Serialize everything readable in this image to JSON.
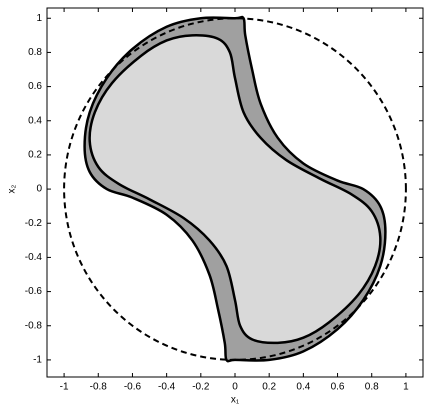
{
  "chart_data": {
    "type": "closed-curve",
    "xlabel": "x₁",
    "ylabel": "x₂",
    "xlim": [
      -1.1,
      1.1
    ],
    "ylim": [
      -1.1,
      1.06
    ],
    "xticks": [
      -1,
      -0.8,
      -0.6,
      -0.4,
      -0.2,
      0,
      0.2,
      0.4,
      0.6,
      0.8,
      1
    ],
    "yticks": [
      -1,
      -0.8,
      -0.6,
      -0.4,
      -0.2,
      0,
      0.2,
      0.4,
      0.6,
      0.8,
      1
    ],
    "series": [
      {
        "color": "#000000",
        "fill": "#a0a0a0",
        "dashed": false,
        "x": [
          0.05,
          0.06,
          0.1,
          0.15,
          0.25,
          0.4,
          0.6,
          0.75,
          0.85,
          0.88,
          0.85,
          0.75,
          0.6,
          0.4,
          0.2,
          0,
          -0.05,
          -0.06,
          -0.1,
          -0.15,
          -0.25,
          -0.4,
          -0.6,
          -0.75,
          -0.85,
          -0.88,
          -0.85,
          -0.75,
          -0.6,
          -0.4,
          -0.2,
          0
        ],
        "y": [
          1.0,
          0.9,
          0.7,
          0.5,
          0.3,
          0.15,
          0.05,
          0,
          -0.1,
          -0.25,
          -0.45,
          -0.65,
          -0.82,
          -0.95,
          -1.0,
          -1.0,
          -1.0,
          -0.9,
          -0.7,
          -0.5,
          -0.3,
          -0.15,
          -0.05,
          0,
          0.1,
          0.25,
          0.45,
          0.65,
          0.82,
          0.95,
          1.0,
          1.0
        ]
      },
      {
        "color": "#000000",
        "fill": "#d9d9d9",
        "dashed": false,
        "x": [
          -0.25,
          -0.1,
          -0.03,
          0,
          0.05,
          0.15,
          0.3,
          0.5,
          0.68,
          0.8,
          0.85,
          0.82,
          0.72,
          0.55,
          0.4,
          0.25,
          0.1,
          0.03,
          0,
          -0.05,
          -0.15,
          -0.3,
          -0.5,
          -0.68,
          -0.8,
          -0.85,
          -0.82,
          -0.72,
          -0.55,
          -0.4
        ],
        "y": [
          0.9,
          0.88,
          0.8,
          0.65,
          0.45,
          0.3,
          0.17,
          0.06,
          -0.03,
          -0.13,
          -0.28,
          -0.45,
          -0.62,
          -0.78,
          -0.87,
          -0.9,
          -0.88,
          -0.8,
          -0.65,
          -0.45,
          -0.3,
          -0.17,
          -0.06,
          0.03,
          0.13,
          0.28,
          0.45,
          0.62,
          0.78,
          0.87
        ]
      },
      {
        "color": "#000000",
        "fill": "none",
        "dashed": true,
        "x": [
          1,
          0.966,
          0.866,
          0.707,
          0.5,
          0.259,
          0,
          -0.259,
          -0.5,
          -0.707,
          -0.866,
          -0.966,
          -1,
          -0.966,
          -0.866,
          -0.707,
          -0.5,
          -0.259,
          0,
          0.259,
          0.5,
          0.707,
          0.866,
          0.966
        ],
        "y": [
          0,
          0.259,
          0.5,
          0.707,
          0.866,
          0.966,
          1,
          0.966,
          0.866,
          0.707,
          0.5,
          0.259,
          0,
          -0.259,
          -0.5,
          -0.707,
          -0.866,
          -0.966,
          -1,
          -0.966,
          -0.866,
          -0.707,
          -0.5,
          -0.259
        ]
      }
    ]
  }
}
